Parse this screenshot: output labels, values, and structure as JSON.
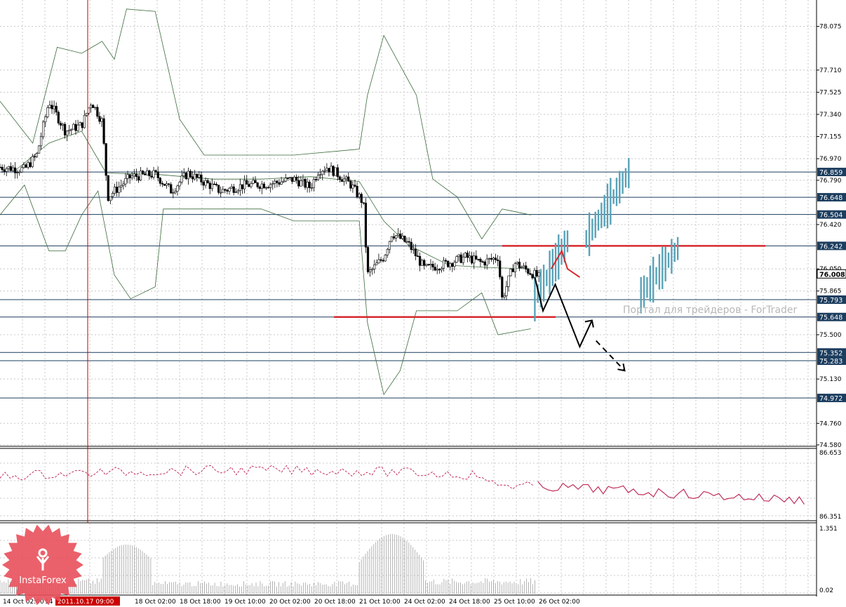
{
  "chart_data": {
    "type": "candlestick",
    "title": "",
    "price_axis": {
      "min": 74.58,
      "max": 78.26,
      "ticks": [
        "78.075",
        "77.710",
        "77.525",
        "77.340",
        "77.155",
        "76.970",
        "76.790",
        "76.420",
        "76.050",
        "75.865",
        "75.500",
        "75.130",
        "74.760",
        "74.580"
      ]
    },
    "levels": [
      {
        "value": 76.859,
        "label": "76.859"
      },
      {
        "value": 76.648,
        "label": "76.648"
      },
      {
        "value": 76.504,
        "label": "76.504"
      },
      {
        "value": 76.242,
        "label": "76.242"
      },
      {
        "value": 75.793,
        "label": "75.793"
      },
      {
        "value": 75.648,
        "label": "75.648"
      },
      {
        "value": 75.352,
        "label": "75.352"
      },
      {
        "value": 75.283,
        "label": "75.283"
      },
      {
        "value": 74.972,
        "label": "74.972"
      }
    ],
    "current_price": {
      "value": 76.008,
      "label": "76.008"
    },
    "red_lines": [
      {
        "value": 76.242,
        "x_from": 0.615,
        "x_to": 0.9375
      },
      {
        "value": 75.648,
        "x_from": 0.409,
        "x_to": 0.6805
      }
    ],
    "x_labels": [
      "14 Oct 02:00",
      "14",
      "18 Oct 02:00",
      "18 Oct 18:00",
      "19 Oct 10:00",
      "20 Oct 02:00",
      "20 Oct 18:00",
      "21 Oct 10:00",
      "24 Oct 02:00",
      "24 Oct 18:00",
      "25 Oct 10:00",
      "26 Oct 02:00"
    ],
    "cursor_label": "2011.10.17 09:00",
    "oscillator": {
      "max_label": "86.653",
      "min_label": "86.351"
    },
    "volume": {
      "max_label": "1.351",
      "min_label": "0.02"
    },
    "price_path": [
      [
        0.0,
        76.9
      ],
      [
        0.03,
        76.88
      ],
      [
        0.045,
        77.0
      ],
      [
        0.06,
        77.45
      ],
      [
        0.08,
        77.2
      ],
      [
        0.1,
        77.25
      ],
      [
        0.112,
        77.45
      ],
      [
        0.125,
        77.28
      ],
      [
        0.132,
        76.65
      ],
      [
        0.16,
        76.82
      ],
      [
        0.19,
        76.84
      ],
      [
        0.21,
        76.7
      ],
      [
        0.23,
        76.85
      ],
      [
        0.27,
        76.7
      ],
      [
        0.3,
        76.75
      ],
      [
        0.33,
        76.76
      ],
      [
        0.36,
        76.8
      ],
      [
        0.38,
        76.73
      ],
      [
        0.39,
        76.87
      ],
      [
        0.4,
        76.9
      ],
      [
        0.41,
        76.86
      ],
      [
        0.43,
        76.75
      ],
      [
        0.445,
        76.6
      ],
      [
        0.45,
        76.0
      ],
      [
        0.47,
        76.15
      ],
      [
        0.48,
        76.35
      ],
      [
        0.5,
        76.26
      ],
      [
        0.52,
        76.05
      ],
      [
        0.55,
        76.1
      ],
      [
        0.57,
        76.15
      ],
      [
        0.59,
        76.1
      ],
      [
        0.61,
        76.15
      ],
      [
        0.615,
        75.8
      ],
      [
        0.63,
        76.1
      ],
      [
        0.66,
        75.98
      ]
    ],
    "bands": {
      "upper": [
        [
          0.0,
          77.45
        ],
        [
          0.04,
          77.1
        ],
        [
          0.07,
          77.9
        ],
        [
          0.1,
          77.85
        ],
        [
          0.125,
          77.95
        ],
        [
          0.14,
          77.8
        ],
        [
          0.155,
          78.22
        ],
        [
          0.19,
          78.2
        ],
        [
          0.22,
          77.3
        ],
        [
          0.25,
          77.0
        ],
        [
          0.32,
          77.0
        ],
        [
          0.36,
          77.0
        ],
        [
          0.44,
          77.05
        ],
        [
          0.45,
          77.5
        ],
        [
          0.47,
          78.0
        ],
        [
          0.51,
          77.5
        ],
        [
          0.53,
          76.8
        ],
        [
          0.56,
          76.65
        ],
        [
          0.59,
          76.3
        ],
        [
          0.615,
          76.55
        ],
        [
          0.65,
          76.5
        ]
      ],
      "lower": [
        [
          0.0,
          76.5
        ],
        [
          0.03,
          76.75
        ],
        [
          0.06,
          76.2
        ],
        [
          0.08,
          76.2
        ],
        [
          0.1,
          76.5
        ],
        [
          0.12,
          76.7
        ],
        [
          0.14,
          76.0
        ],
        [
          0.16,
          75.8
        ],
        [
          0.19,
          75.9
        ],
        [
          0.2,
          76.55
        ],
        [
          0.26,
          76.55
        ],
        [
          0.32,
          76.55
        ],
        [
          0.36,
          76.45
        ],
        [
          0.44,
          76.45
        ],
        [
          0.45,
          75.6
        ],
        [
          0.47,
          75.0
        ],
        [
          0.49,
          75.2
        ],
        [
          0.51,
          75.7
        ],
        [
          0.56,
          75.7
        ],
        [
          0.59,
          75.85
        ],
        [
          0.61,
          75.5
        ],
        [
          0.65,
          75.55
        ]
      ],
      "middle": [
        [
          0.02,
          76.88
        ],
        [
          0.06,
          77.1
        ],
        [
          0.1,
          77.2
        ],
        [
          0.13,
          76.85
        ],
        [
          0.19,
          76.84
        ],
        [
          0.26,
          76.8
        ],
        [
          0.32,
          76.8
        ],
        [
          0.38,
          76.82
        ],
        [
          0.44,
          76.78
        ],
        [
          0.47,
          76.45
        ],
        [
          0.5,
          76.25
        ],
        [
          0.55,
          76.08
        ],
        [
          0.6,
          76.06
        ],
        [
          0.65,
          76.05
        ]
      ]
    },
    "forecast": {
      "main": [
        [
          0.655,
          75.98
        ],
        [
          0.665,
          75.7
        ],
        [
          0.68,
          75.92
        ],
        [
          0.71,
          75.4
        ],
        [
          0.725,
          75.62
        ]
      ],
      "dashed": [
        [
          0.73,
          75.45
        ],
        [
          0.765,
          75.2
        ]
      ],
      "red": [
        [
          0.675,
          76.05
        ],
        [
          0.688,
          76.2
        ],
        [
          0.695,
          76.05
        ],
        [
          0.71,
          75.98
        ]
      ]
    },
    "teal_clusters": [
      {
        "x_from": 0.655,
        "x_to": 0.695,
        "lo": 75.8,
        "hi": 76.28
      },
      {
        "x_from": 0.718,
        "x_to": 0.77,
        "lo": 76.3,
        "hi": 76.85
      },
      {
        "x_from": 0.785,
        "x_to": 0.83,
        "lo": 75.83,
        "hi": 76.22
      }
    ],
    "colors": {
      "level_line": "#1c3d5e",
      "red_line": "#d6292d",
      "oscillator": "#c0305a",
      "teal": "#5aa3b8",
      "band": "#3b6a3b",
      "cursor": "#cc0000"
    }
  },
  "watermark": "Портал для трейдеров - ForTrader",
  "logo": {
    "text": "InstaForex"
  }
}
